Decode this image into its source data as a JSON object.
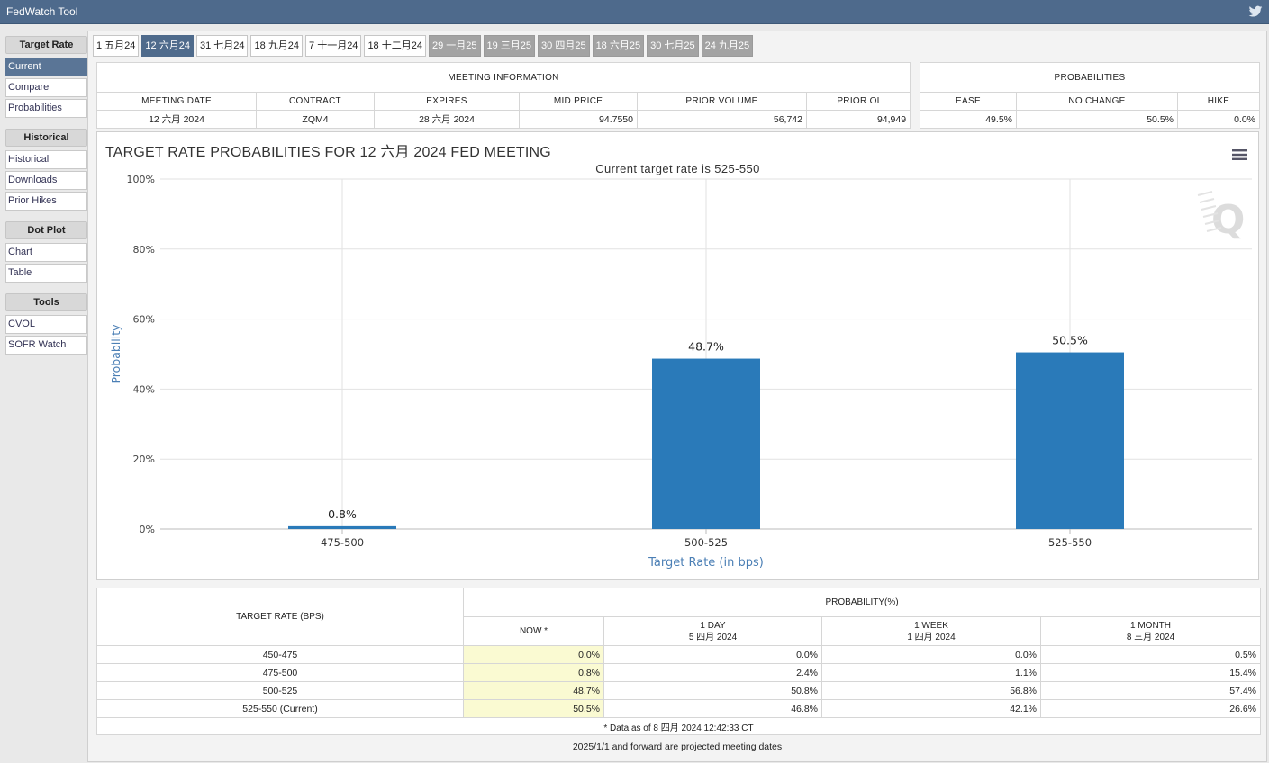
{
  "app": {
    "title": "FedWatch Tool"
  },
  "sidebar": {
    "groups": [
      {
        "heading": "Target Rate",
        "items": [
          "Current",
          "Compare",
          "Probabilities"
        ]
      },
      {
        "heading": "Historical",
        "items": [
          "Historical",
          "Downloads",
          "Prior Hikes"
        ]
      },
      {
        "heading": "Dot Plot",
        "items": [
          "Chart",
          "Table"
        ]
      },
      {
        "heading": "Tools",
        "items": [
          "CVOL",
          "SOFR Watch"
        ]
      }
    ]
  },
  "tabs": [
    {
      "label": "1 五月24",
      "state": "normal"
    },
    {
      "label": "12 六月24",
      "state": "active"
    },
    {
      "label": "31 七月24",
      "state": "normal"
    },
    {
      "label": "18 九月24",
      "state": "normal"
    },
    {
      "label": "7 十一月24",
      "state": "normal"
    },
    {
      "label": "18 十二月24",
      "state": "normal"
    },
    {
      "label": "29 一月25",
      "state": "projected"
    },
    {
      "label": "19 三月25",
      "state": "projected"
    },
    {
      "label": "30 四月25",
      "state": "projected"
    },
    {
      "label": "18 六月25",
      "state": "projected"
    },
    {
      "label": "30 七月25",
      "state": "projected"
    },
    {
      "label": "24 九月25",
      "state": "projected"
    }
  ],
  "meeting_info": {
    "heading": "MEETING INFORMATION",
    "headers": [
      "MEETING DATE",
      "CONTRACT",
      "EXPIRES",
      "MID PRICE",
      "PRIOR VOLUME",
      "PRIOR OI"
    ],
    "values": [
      "12 六月 2024",
      "ZQM4",
      "28 六月 2024",
      "94.7550",
      "56,742",
      "94,949"
    ]
  },
  "probabilities": {
    "heading": "PROBABILITIES",
    "headers": [
      "EASE",
      "NO CHANGE",
      "HIKE"
    ],
    "values": [
      "49.5%",
      "50.5%",
      "0.0%"
    ]
  },
  "chart": {
    "title": "TARGET RATE PROBABILITIES FOR 12 六月 2024 FED MEETING",
    "subtitle": "Current target rate is 525-550"
  },
  "chart_data": {
    "type": "bar",
    "title": "TARGET RATE PROBABILITIES FOR 12 六月 2024 FED MEETING",
    "subtitle": "Current target rate is 525-550",
    "categories": [
      "475-500",
      "500-525",
      "525-550"
    ],
    "values": [
      0.8,
      48.7,
      50.5
    ],
    "data_labels": [
      "0.8%",
      "48.7%",
      "50.5%"
    ],
    "xlabel": "Target Rate (in bps)",
    "ylabel": "Probability",
    "ylim": [
      0,
      100
    ],
    "yticks": [
      "0%",
      "20%",
      "40%",
      "60%",
      "80%",
      "100%"
    ],
    "grid": true,
    "bar_color": "#2a7ab9",
    "legend": "none"
  },
  "prob_table": {
    "row_header": "TARGET RATE (BPS)",
    "group_header": "PROBABILITY(%)",
    "columns": [
      {
        "line1": "NOW *",
        "line2": ""
      },
      {
        "line1": "1 DAY",
        "line2": "5 四月 2024"
      },
      {
        "line1": "1 WEEK",
        "line2": "1 四月 2024"
      },
      {
        "line1": "1 MONTH",
        "line2": "8 三月 2024"
      }
    ],
    "rows": [
      {
        "rate": "450-475",
        "values": [
          "0.0%",
          "0.0%",
          "0.0%",
          "0.5%"
        ]
      },
      {
        "rate": "475-500",
        "values": [
          "0.8%",
          "2.4%",
          "1.1%",
          "15.4%"
        ]
      },
      {
        "rate": "500-525",
        "values": [
          "48.7%",
          "50.8%",
          "56.8%",
          "57.4%"
        ]
      },
      {
        "rate": "525-550 (Current)",
        "values": [
          "50.5%",
          "46.8%",
          "42.1%",
          "26.6%"
        ]
      }
    ],
    "footnote": "* Data as of 8 四月 2024 12:42:33 CT"
  },
  "bottom_note": "2025/1/1 and forward are projected meeting dates",
  "colors": {
    "titlebar": "#4e6a8c",
    "active_tab": "#4f6b8c",
    "projected_tab": "#a3a3a3",
    "now_column": "#fafad2"
  },
  "icons": {
    "share": "twitter-icon",
    "chart_menu": "hamburger-menu-icon"
  }
}
